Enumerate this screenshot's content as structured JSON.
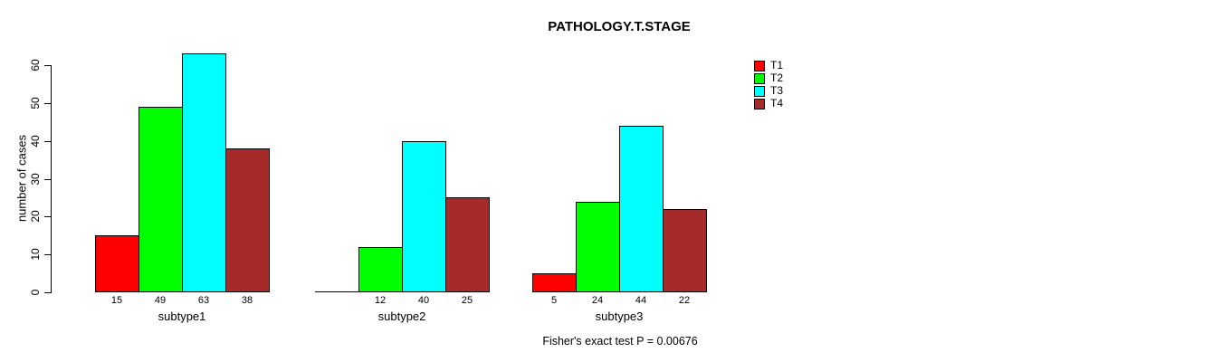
{
  "chart": {
    "title": "PATHOLOGY.T.STAGE",
    "ylabel": "number of cases",
    "footnote": "Fisher's exact test P = 0.00676"
  },
  "chart_data": {
    "type": "bar",
    "grouped": true,
    "title": "PATHOLOGY.T.STAGE",
    "xlabel": "",
    "ylabel": "number of cases",
    "categories": [
      "subtype1",
      "subtype2",
      "subtype3"
    ],
    "series": [
      {
        "name": "T1",
        "color": "#FF0000",
        "values": [
          15,
          0,
          5
        ],
        "value_labels": [
          "15",
          "",
          "5"
        ]
      },
      {
        "name": "T2",
        "color": "#00FF00",
        "values": [
          49,
          12,
          24
        ],
        "value_labels": [
          "49",
          "12",
          "24"
        ]
      },
      {
        "name": "T3",
        "color": "#00FFFF",
        "values": [
          63,
          40,
          44
        ],
        "value_labels": [
          "63",
          "40",
          "44"
        ]
      },
      {
        "name": "T4",
        "color": "#A52A2A",
        "values": [
          38,
          25,
          22
        ],
        "value_labels": [
          "38",
          "25",
          "22"
        ]
      }
    ],
    "ylim": [
      0,
      60
    ],
    "yticks": [
      0,
      10,
      20,
      30,
      40,
      50,
      60
    ],
    "grid": false,
    "legend_position": "top-right",
    "annotation": "Fisher's exact test P = 0.00676",
    "axis_color": "#000000",
    "background_color": "#FFFFFF"
  }
}
